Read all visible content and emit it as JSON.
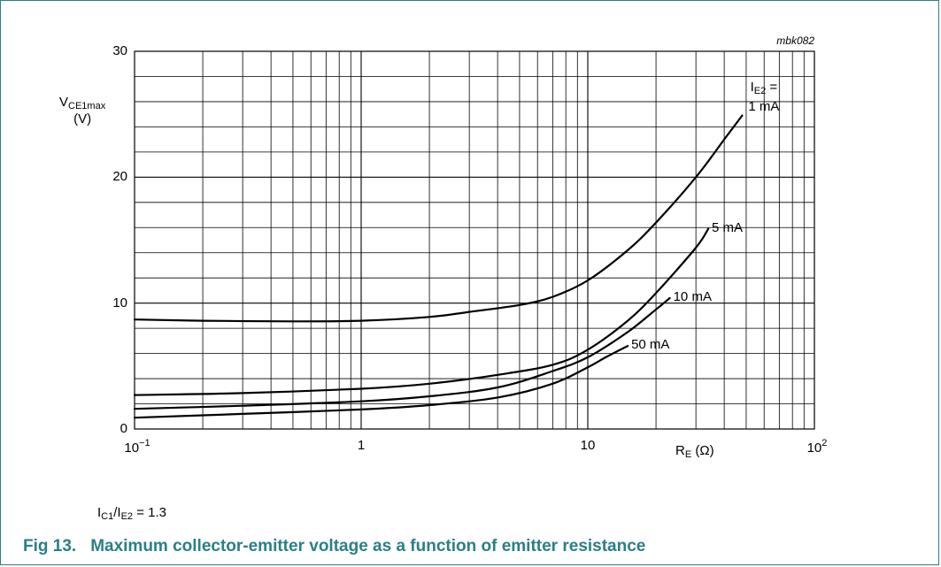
{
  "figure": {
    "number": "Fig 13.",
    "title": "Maximum collector-emitter voltage as a function of emitter resistance",
    "code": "mbk082",
    "condition": {
      "lhs": "I",
      "lhs_sub": "C1",
      "div": "/I",
      "div_sub": "E2",
      "rhs": " = 1.3"
    }
  },
  "colors": {
    "border": "#2a7f87",
    "title": "#2a7f87",
    "grid": "#000000",
    "curve": "#000000"
  },
  "chart_data": {
    "type": "line",
    "xscale": "log",
    "xlim": [
      0.1,
      100
    ],
    "ylim": [
      0,
      30
    ],
    "grid": true,
    "xlabel": {
      "main": "R",
      "sub": "E",
      "unit": " (Ω)"
    },
    "ylabel": {
      "main": "V",
      "sub": "CE1max",
      "unit": "(V)"
    },
    "x_ticks": [
      {
        "value": 0.1,
        "base": "10",
        "exp": "−1"
      },
      {
        "value": 1,
        "base": "1",
        "exp": ""
      },
      {
        "value": 10,
        "base": "10",
        "exp": ""
      },
      {
        "value": 100,
        "base": "10",
        "exp": "2"
      }
    ],
    "y_ticks": [
      0,
      10,
      20,
      30
    ],
    "series": [
      {
        "name": "1 mA",
        "label_prefix": "I",
        "label_sub": "E2",
        "label_suffix": " =",
        "label_line2": "1 mA",
        "points": [
          [
            0.1,
            8.7
          ],
          [
            0.2,
            8.6
          ],
          [
            0.5,
            8.55
          ],
          [
            1,
            8.6
          ],
          [
            2,
            8.9
          ],
          [
            3,
            9.3
          ],
          [
            5,
            9.85
          ],
          [
            7,
            10.5
          ],
          [
            10,
            11.8
          ],
          [
            15,
            14.2
          ],
          [
            20,
            16.4
          ],
          [
            30,
            20.0
          ],
          [
            40,
            23.0
          ],
          [
            48,
            24.9
          ]
        ]
      },
      {
        "name": "5 mA",
        "label_prefix": "",
        "label_sub": "",
        "label_suffix": "",
        "points": [
          [
            0.1,
            2.7
          ],
          [
            0.3,
            2.85
          ],
          [
            1,
            3.2
          ],
          [
            2,
            3.6
          ],
          [
            4,
            4.3
          ],
          [
            7,
            5.1
          ],
          [
            10,
            6.3
          ],
          [
            15,
            8.6
          ],
          [
            20,
            10.8
          ],
          [
            30,
            14.4
          ],
          [
            34,
            15.9
          ]
        ]
      },
      {
        "name": "10 mA",
        "label_prefix": "",
        "label_sub": "",
        "label_suffix": "",
        "points": [
          [
            0.1,
            1.6
          ],
          [
            0.3,
            1.85
          ],
          [
            1,
            2.2
          ],
          [
            2,
            2.6
          ],
          [
            4,
            3.3
          ],
          [
            7,
            4.6
          ],
          [
            10,
            5.7
          ],
          [
            15,
            7.7
          ],
          [
            20,
            9.5
          ],
          [
            23,
            10.4
          ]
        ]
      },
      {
        "name": "50 mA",
        "label_prefix": "",
        "label_sub": "",
        "label_suffix": "",
        "points": [
          [
            0.1,
            0.9
          ],
          [
            0.3,
            1.2
          ],
          [
            1,
            1.55
          ],
          [
            2,
            1.9
          ],
          [
            4,
            2.5
          ],
          [
            7,
            3.6
          ],
          [
            10,
            4.9
          ],
          [
            12,
            5.7
          ],
          [
            15,
            6.6
          ]
        ]
      }
    ]
  }
}
